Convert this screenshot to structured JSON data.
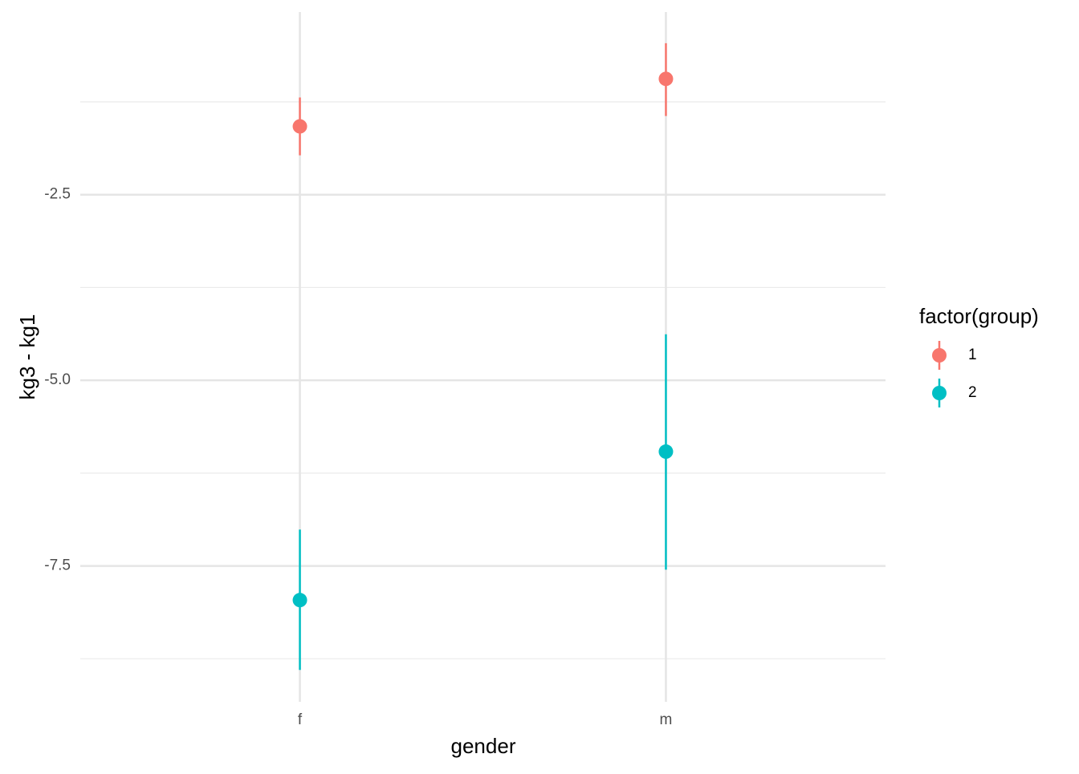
{
  "chart_data": {
    "type": "pointrange",
    "x_label": "gender",
    "y_label": "kg3 - kg1",
    "categories": [
      "f",
      "m"
    ],
    "series": [
      {
        "name": "1",
        "color": "#F8766D",
        "values": [
          -1.58,
          -0.94
        ],
        "lower": [
          -1.97,
          -1.44
        ],
        "upper": [
          -1.19,
          -0.46
        ]
      },
      {
        "name": "2",
        "color": "#00BFC4",
        "values": [
          -7.96,
          -5.96
        ],
        "lower": [
          -8.9,
          -7.55
        ],
        "upper": [
          -7.01,
          -4.38
        ]
      }
    ],
    "ylim": [
      -9.33,
      -0.04
    ],
    "yticks": [
      -2.5,
      {
        "value": -5,
        "label": "-5.0"
      },
      -7.5
    ],
    "minor_yticks": [
      -1.25,
      -3.75,
      -6.25,
      -8.75
    ],
    "grid": true,
    "legend": {
      "title": "factor(group)",
      "position": "right"
    }
  }
}
